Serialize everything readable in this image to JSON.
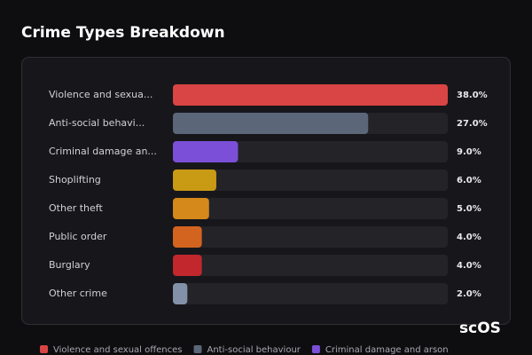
{
  "chart_data": {
    "type": "bar",
    "orientation": "horizontal",
    "title": "Crime Types Breakdown",
    "categories": [
      "Violence and sexua...",
      "Anti-social behavi...",
      "Criminal damage an...",
      "Shoplifting",
      "Other theft",
      "Public order",
      "Burglary",
      "Other crime"
    ],
    "values": [
      38,
      27,
      9,
      6,
      5,
      4,
      4,
      2
    ],
    "value_labels": [
      "38.0%",
      "27.0%",
      "9.0%",
      "6.0%",
      "5.0%",
      "4.0%",
      "4.0%",
      "2.0%"
    ],
    "colors": [
      "#d94444",
      "#5b6678",
      "#7b4fd8",
      "#c99a14",
      "#d4891a",
      "#d3641f",
      "#c1272d",
      "#8391a8"
    ],
    "xlim": [
      0,
      38
    ],
    "legend": [
      {
        "name": "Violence and sexual offences",
        "color": "#d94444"
      },
      {
        "name": "Anti-social behaviour",
        "color": "#5b6678"
      },
      {
        "name": "Criminal damage and arson",
        "color": "#7b4fd8"
      }
    ]
  },
  "watermark": "scOS"
}
